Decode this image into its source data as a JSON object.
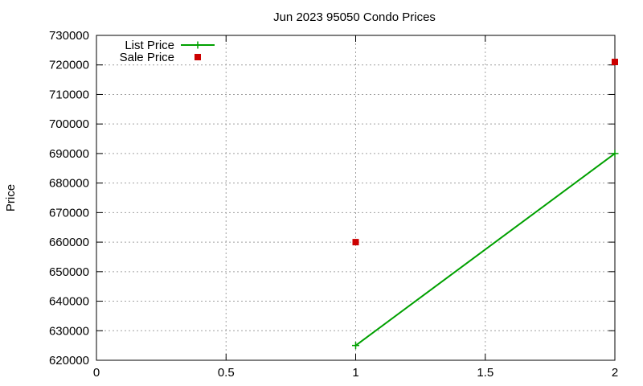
{
  "chart_data": {
    "type": "line",
    "title": "Jun 2023 95050 Condo Prices",
    "xlabel": "",
    "ylabel": "Price",
    "xlim": [
      0,
      2
    ],
    "ylim": [
      620000,
      730000
    ],
    "xticks": [
      0,
      0.5,
      1,
      1.5,
      2
    ],
    "xtick_labels": [
      "0",
      "0.5",
      "1",
      "1.5",
      "2"
    ],
    "yticks": [
      620000,
      630000,
      640000,
      650000,
      660000,
      670000,
      680000,
      690000,
      700000,
      710000,
      720000,
      730000
    ],
    "ytick_labels": [
      "620000",
      "630000",
      "640000",
      "650000",
      "660000",
      "670000",
      "680000",
      "690000",
      "700000",
      "710000",
      "720000",
      "730000"
    ],
    "grid": true,
    "legend_position": "top-left",
    "series": [
      {
        "name": "List Price",
        "style": "line+cross",
        "color": "#00a000",
        "x": [
          1,
          2
        ],
        "y": [
          625000,
          690000
        ]
      },
      {
        "name": "Sale Price",
        "style": "square",
        "color": "#cc0000",
        "x": [
          1,
          2
        ],
        "y": [
          660000,
          721000
        ]
      }
    ]
  }
}
